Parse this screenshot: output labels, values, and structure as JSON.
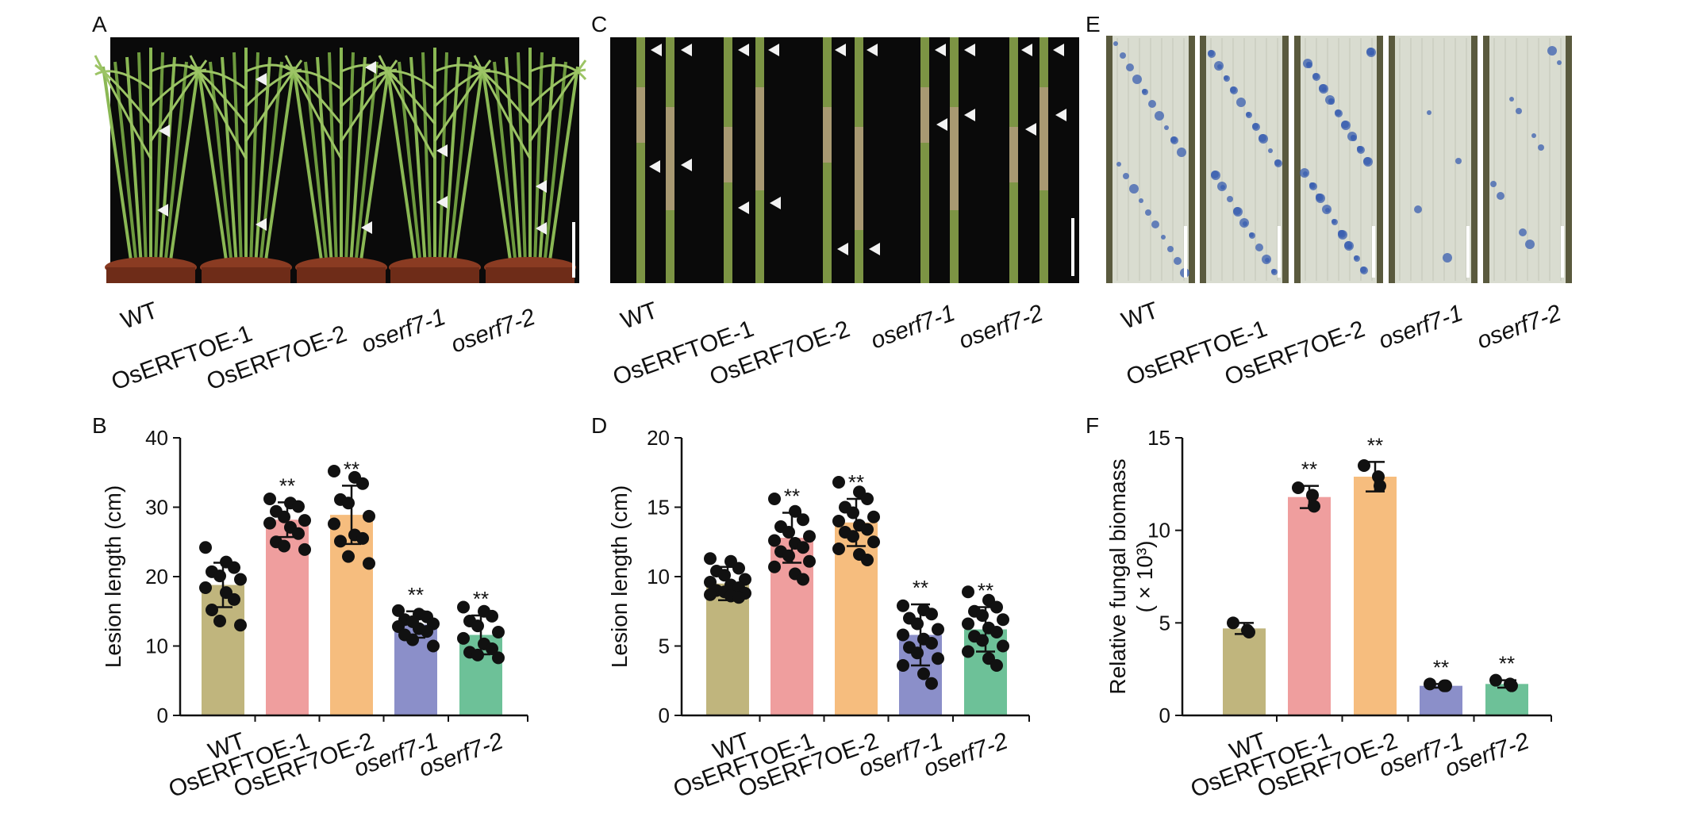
{
  "panel_labels": [
    "A",
    "B",
    "C",
    "D",
    "E",
    "F"
  ],
  "genotypes": [
    "WT",
    "OsERFTOE-1",
    "OsERF7OE-2",
    "oserf7-1",
    "oserf7-2"
  ],
  "colors": {
    "WT": "#c0b57d",
    "OsERFTOE-1": "#ef9e9e",
    "OsERF7OE-2": "#f6bd7e",
    "oserf7-1": "#8b8fc9",
    "oserf7-2": "#6dc198",
    "photo_bg": "#0a0a0a",
    "stain_bg": "#d9dcd0"
  },
  "chart_data": [
    {
      "panel": "B",
      "type": "bar",
      "categories": [
        "WT",
        "OsERFTOE-1",
        "OsERF7OE-2",
        "oserf7-1",
        "oserf7-2"
      ],
      "values": [
        18.8,
        28.2,
        28.9,
        13.1,
        11.6
      ],
      "errors": [
        3.2,
        2.5,
        4.2,
        1.9,
        2.8
      ],
      "points": [
        [
          24.2,
          22.1,
          21.3,
          20.7,
          20.1,
          19.6,
          18.4,
          17.7,
          16.7,
          15.2,
          13.6,
          13.0
        ],
        [
          31.2,
          30.6,
          30.1,
          29.4,
          28.6,
          28.1,
          27.7,
          27.1,
          26.2,
          25.0,
          24.4,
          23.9
        ],
        [
          35.2,
          34.3,
          33.4,
          31.1,
          30.6,
          28.7,
          27.6,
          26.0,
          25.5,
          25.1,
          22.9,
          21.9
        ],
        [
          15.1,
          14.6,
          14.2,
          13.8,
          13.5,
          13.2,
          12.8,
          12.5,
          12.1,
          11.6,
          10.9,
          10.0
        ],
        [
          15.6,
          15.0,
          14.3,
          13.6,
          12.9,
          12.0,
          11.1,
          10.3,
          9.6,
          9.1,
          8.7,
          8.3
        ]
      ],
      "significance": [
        "",
        "**",
        "**",
        "**",
        "**"
      ],
      "ylabel": "Lesion length (cm)",
      "ylim": [
        0,
        40
      ],
      "yticks": [
        0,
        10,
        20,
        30,
        40
      ]
    },
    {
      "panel": "D",
      "type": "bar",
      "categories": [
        "WT",
        "OsERFTOE-1",
        "OsERF7OE-2",
        "oserf7-1",
        "oserf7-2"
      ],
      "values": [
        9.5,
        12.8,
        13.9,
        5.8,
        6.2
      ],
      "errors": [
        1.2,
        1.8,
        1.7,
        2.2,
        1.6
      ],
      "points": [
        [
          11.3,
          11.1,
          10.6,
          10.4,
          10.1,
          9.8,
          9.6,
          9.4,
          9.2,
          9.0,
          8.9,
          8.8,
          8.7,
          8.6,
          8.5
        ],
        [
          15.6,
          14.7,
          14.1,
          13.6,
          13.2,
          12.9,
          12.6,
          12.4,
          12.1,
          11.8,
          11.5,
          11.1,
          10.7,
          10.2,
          9.8
        ],
        [
          16.8,
          16.1,
          15.6,
          15.0,
          14.6,
          14.3,
          14.0,
          13.7,
          13.4,
          13.2,
          12.9,
          12.5,
          12.0,
          11.6,
          11.2
        ],
        [
          7.9,
          7.6,
          7.3,
          7.0,
          6.6,
          6.2,
          5.8,
          5.5,
          5.2,
          4.9,
          4.5,
          4.1,
          3.6,
          3.0,
          2.3
        ],
        [
          8.9,
          8.3,
          7.8,
          7.5,
          7.2,
          6.9,
          6.6,
          6.3,
          6.0,
          5.7,
          5.4,
          5.0,
          4.6,
          4.1,
          3.6
        ]
      ],
      "significance": [
        "",
        "**",
        "**",
        "**",
        "**"
      ],
      "ylabel": "Lesion length (cm)",
      "ylim": [
        0,
        20
      ],
      "yticks": [
        0,
        5,
        10,
        15,
        20
      ]
    },
    {
      "panel": "F",
      "type": "bar",
      "categories": [
        "WT",
        "OsERFTOE-1",
        "OsERF7OE-2",
        "oserf7-1",
        "oserf7-2"
      ],
      "values": [
        4.7,
        11.8,
        12.9,
        1.6,
        1.7
      ],
      "errors": [
        0.3,
        0.6,
        0.8,
        0.1,
        0.2
      ],
      "points": [
        [
          5.0,
          4.6,
          4.5
        ],
        [
          12.3,
          11.9,
          11.3
        ],
        [
          13.5,
          12.9,
          12.4
        ],
        [
          1.7,
          1.6,
          1.6
        ],
        [
          1.9,
          1.7,
          1.6
        ]
      ],
      "significance": [
        "",
        "**",
        "**",
        "**",
        "**"
      ],
      "ylabel": "Relative fungal biomass",
      "ylabel2": "( × 10³)",
      "ylim": [
        0,
        15
      ],
      "yticks": [
        0,
        5,
        10,
        15
      ]
    }
  ]
}
